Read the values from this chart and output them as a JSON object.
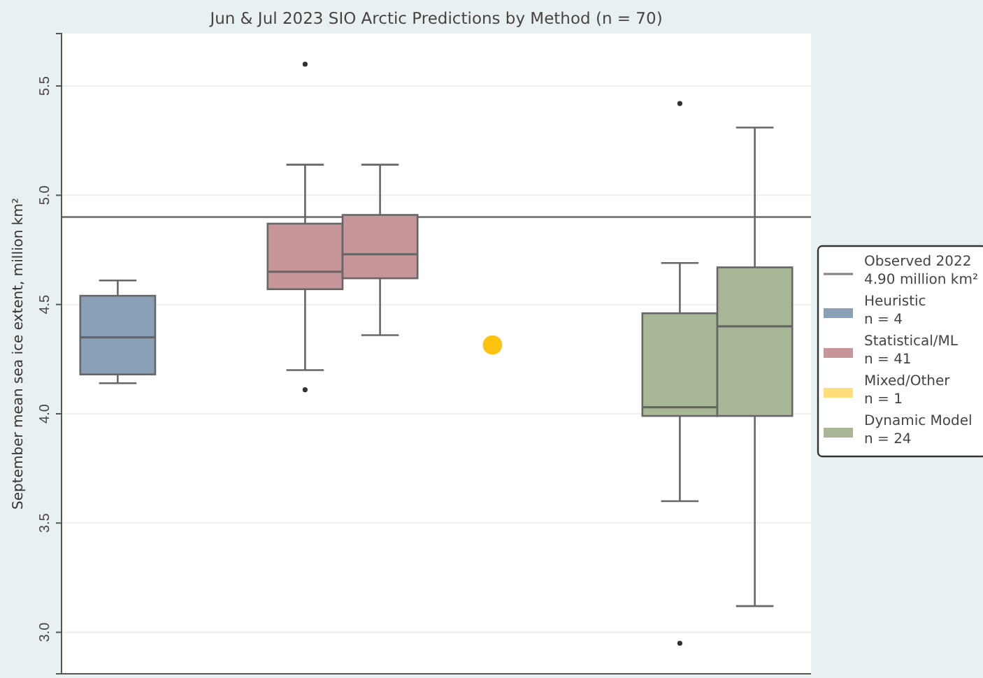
{
  "chart_data": {
    "type": "box",
    "title": "Jun & Jul 2023 SIO Arctic Predictions by Method (n = 70)",
    "ylabel": "September mean sea ice extent, million km²",
    "categories": [
      null,
      null,
      null,
      null,
      null,
      null,
      null,
      null
    ],
    "ylim": [
      2.81,
      5.74
    ],
    "yticks": [
      {
        "value": 3,
        "label": "3.0"
      },
      3.5,
      {
        "value": 4,
        "label": "4.0"
      },
      4.5,
      {
        "value": 5,
        "label": "5.0"
      },
      5.5
    ],
    "grid": "y",
    "legend": "right",
    "tick_labels": "y",
    "ref_lines": [
      {
        "axis": "y",
        "value": 4.9,
        "label": "Observed 2022\n4.90 million km²",
        "color": "#7f7f7f"
      }
    ],
    "series": [
      {
        "name": "Heuristic\nn = 4",
        "color": "#8aa0b7",
        "boxes": [
          {
            "low": 4.14,
            "q1": 4.18,
            "median": 4.35,
            "q3": 4.54,
            "high": 4.61
          },
          null,
          null,
          null,
          null,
          null,
          null,
          null
        ]
      },
      {
        "name": "Statistical/ML\nn = 41",
        "color": "#c7969a",
        "boxes": [
          null,
          null,
          {
            "low": 4.2,
            "q1": 4.57,
            "median": 4.65,
            "q3": 4.87,
            "high": 5.14,
            "outliers": [
              5.6,
              4.11
            ]
          },
          {
            "low": 4.36,
            "q1": 4.62,
            "median": 4.73,
            "q3": 4.91,
            "high": 5.14
          },
          null,
          null,
          null,
          null
        ]
      },
      {
        "name": "Mixed/Other\nn = 1",
        "color": "#ffc20e",
        "type": "scatter",
        "marker": "circle",
        "values": [
          null,
          null,
          null,
          null,
          4.315,
          null,
          null,
          null
        ]
      },
      {
        "name": "Dynamic Model\nn = 24",
        "color": "#a8b896",
        "boxes": [
          null,
          null,
          null,
          null,
          null,
          null,
          {
            "low": 3.6,
            "q1": 3.99,
            "median": 4.03,
            "q3": 4.46,
            "high": 4.69,
            "outliers": [
              5.42,
              2.95
            ]
          },
          {
            "low": 3.12,
            "q1": 3.99,
            "median": 4.4,
            "q3": 4.67,
            "high": 5.31
          }
        ]
      }
    ]
  }
}
